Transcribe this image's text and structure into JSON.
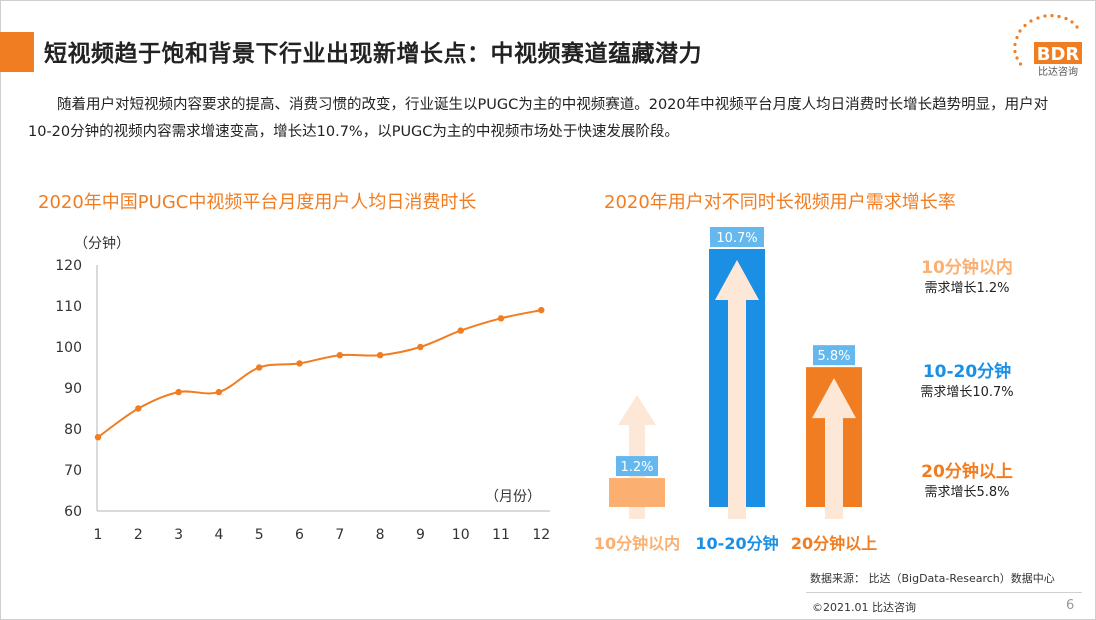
{
  "header": {
    "title": "短视频趋于饱和背景下行业出现新增长点：中视频赛道蕴藏潜力",
    "logo_text": "BDR",
    "logo_subtext": "比达咨询"
  },
  "intro": {
    "paragraph": "随着用户对短视频内容要求的提高、消费习惯的改变，行业诞生以PUGC为主的中视频赛道。2020年中视频平台月度人均日消费时长增长趋势明显，用户对10-20分钟的视频内容需求增速变高，增长达10.7%，以PUGC为主的中视频市场处于快速发展阶段。"
  },
  "colors": {
    "accent": "#f07d22",
    "blue": "#1a8fe3",
    "light_orange": "#fbb072",
    "label_blue": "#64b8ee",
    "arrow": "#fde7d7"
  },
  "chart_data": [
    {
      "type": "line",
      "title": "2020年中国PUGC中视频平台月度用户人均日消费时长",
      "ylabel": "（分钟）",
      "xlabel": "（月份）",
      "x": [
        1,
        2,
        3,
        4,
        5,
        6,
        7,
        8,
        9,
        10,
        11,
        12
      ],
      "values": [
        78,
        85,
        89,
        89,
        95,
        96,
        98,
        98,
        100,
        104,
        107,
        109
      ],
      "ylim": [
        60,
        120
      ],
      "yticks": [
        60,
        70,
        80,
        90,
        100,
        110,
        120
      ],
      "grid": false
    },
    {
      "type": "bar",
      "title": "2020年用户对不同时长视频用户需求增长率",
      "categories": [
        "10分钟以内",
        "10-20分钟",
        "20分钟以上"
      ],
      "values": [
        1.2,
        10.7,
        5.8
      ],
      "value_labels": [
        "1.2%",
        "10.7%",
        "5.8%"
      ],
      "legend": [
        {
          "name": "10分钟以内",
          "desc": "需求增长1.2%"
        },
        {
          "name": "10-20分钟",
          "desc": "需求增长10.7%"
        },
        {
          "name": "20分钟以上",
          "desc": "需求增长5.8%"
        }
      ]
    }
  ],
  "footer": {
    "source": "数据来源： 比达（BigData-Research）数据中心",
    "copyright": "©2021.01 比达咨询",
    "page": "6"
  }
}
